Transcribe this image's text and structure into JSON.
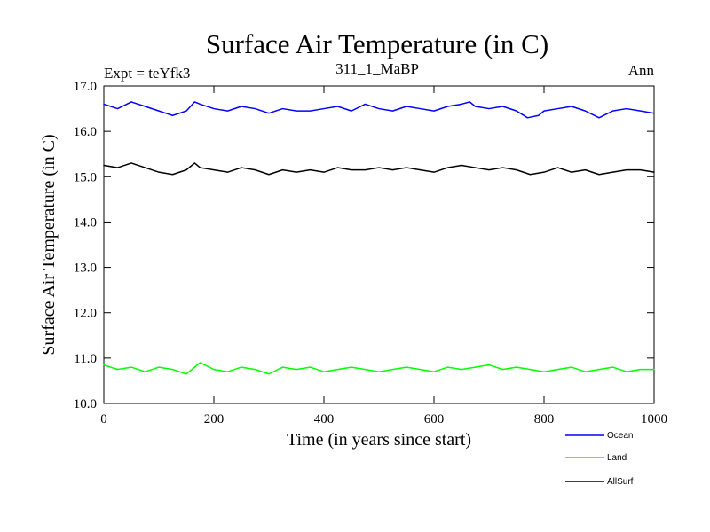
{
  "chart_data": {
    "type": "line",
    "title": "Surface Air Temperature (in C)",
    "subtitle_left": "Expt = teYfk3",
    "subtitle_center": "311_1_MaBP",
    "subtitle_right": "Ann",
    "xlabel": "Time (in years since start)",
    "ylabel": "Surface Air Temperature (in C)",
    "xlim": [
      0,
      1000
    ],
    "ylim": [
      10.0,
      17.0
    ],
    "x_ticks": [
      0,
      200,
      400,
      600,
      800,
      1000
    ],
    "x_tick_labels": [
      "0",
      "200",
      "400",
      "600",
      "800",
      "1000"
    ],
    "y_ticks": [
      10.0,
      11.0,
      12.0,
      13.0,
      14.0,
      15.0,
      16.0,
      17.0
    ],
    "y_tick_labels": [
      "10.0",
      "11.0",
      "12.0",
      "13.0",
      "14.0",
      "15.0",
      "16.0",
      "17.0"
    ],
    "legend_position": "bottom-right",
    "series": [
      {
        "name": "Ocean",
        "color": "#0000ff",
        "x": [
          0,
          25,
          50,
          75,
          100,
          125,
          150,
          165,
          175,
          200,
          225,
          250,
          275,
          300,
          325,
          350,
          375,
          400,
          425,
          450,
          475,
          500,
          525,
          550,
          575,
          600,
          625,
          650,
          665,
          675,
          700,
          725,
          750,
          770,
          790,
          800,
          825,
          850,
          875,
          900,
          925,
          950,
          975,
          1000
        ],
        "values": [
          16.6,
          16.5,
          16.65,
          16.55,
          16.45,
          16.35,
          16.45,
          16.65,
          16.6,
          16.5,
          16.45,
          16.55,
          16.5,
          16.4,
          16.5,
          16.45,
          16.45,
          16.5,
          16.55,
          16.45,
          16.6,
          16.5,
          16.45,
          16.55,
          16.5,
          16.45,
          16.55,
          16.6,
          16.65,
          16.55,
          16.5,
          16.55,
          16.45,
          16.3,
          16.35,
          16.45,
          16.5,
          16.55,
          16.45,
          16.3,
          16.45,
          16.5,
          16.45,
          16.4
        ]
      },
      {
        "name": "Land",
        "color": "#00ff00",
        "x": [
          0,
          25,
          50,
          75,
          100,
          125,
          150,
          175,
          200,
          225,
          250,
          275,
          300,
          325,
          350,
          375,
          400,
          425,
          450,
          475,
          500,
          525,
          550,
          575,
          600,
          625,
          650,
          675,
          700,
          725,
          750,
          775,
          800,
          825,
          850,
          875,
          900,
          925,
          950,
          975,
          1000
        ],
        "values": [
          10.85,
          10.75,
          10.8,
          10.7,
          10.8,
          10.75,
          10.65,
          10.9,
          10.75,
          10.7,
          10.8,
          10.75,
          10.65,
          10.8,
          10.75,
          10.8,
          10.7,
          10.75,
          10.8,
          10.75,
          10.7,
          10.75,
          10.8,
          10.75,
          10.7,
          10.8,
          10.75,
          10.8,
          10.85,
          10.75,
          10.8,
          10.75,
          10.7,
          10.75,
          10.8,
          10.7,
          10.75,
          10.8,
          10.7,
          10.75,
          10.75
        ]
      },
      {
        "name": "AllSurf",
        "color": "#000000",
        "x": [
          0,
          25,
          50,
          75,
          100,
          125,
          150,
          165,
          175,
          200,
          225,
          250,
          275,
          300,
          325,
          350,
          375,
          400,
          425,
          450,
          475,
          500,
          525,
          550,
          575,
          600,
          625,
          650,
          675,
          700,
          725,
          750,
          775,
          800,
          825,
          850,
          875,
          900,
          925,
          950,
          975,
          1000
        ],
        "values": [
          15.25,
          15.2,
          15.3,
          15.2,
          15.1,
          15.05,
          15.15,
          15.3,
          15.2,
          15.15,
          15.1,
          15.2,
          15.15,
          15.05,
          15.15,
          15.1,
          15.15,
          15.1,
          15.2,
          15.15,
          15.15,
          15.2,
          15.15,
          15.2,
          15.15,
          15.1,
          15.2,
          15.25,
          15.2,
          15.15,
          15.2,
          15.15,
          15.05,
          15.1,
          15.2,
          15.1,
          15.15,
          15.05,
          15.1,
          15.15,
          15.15,
          15.1
        ]
      }
    ]
  }
}
